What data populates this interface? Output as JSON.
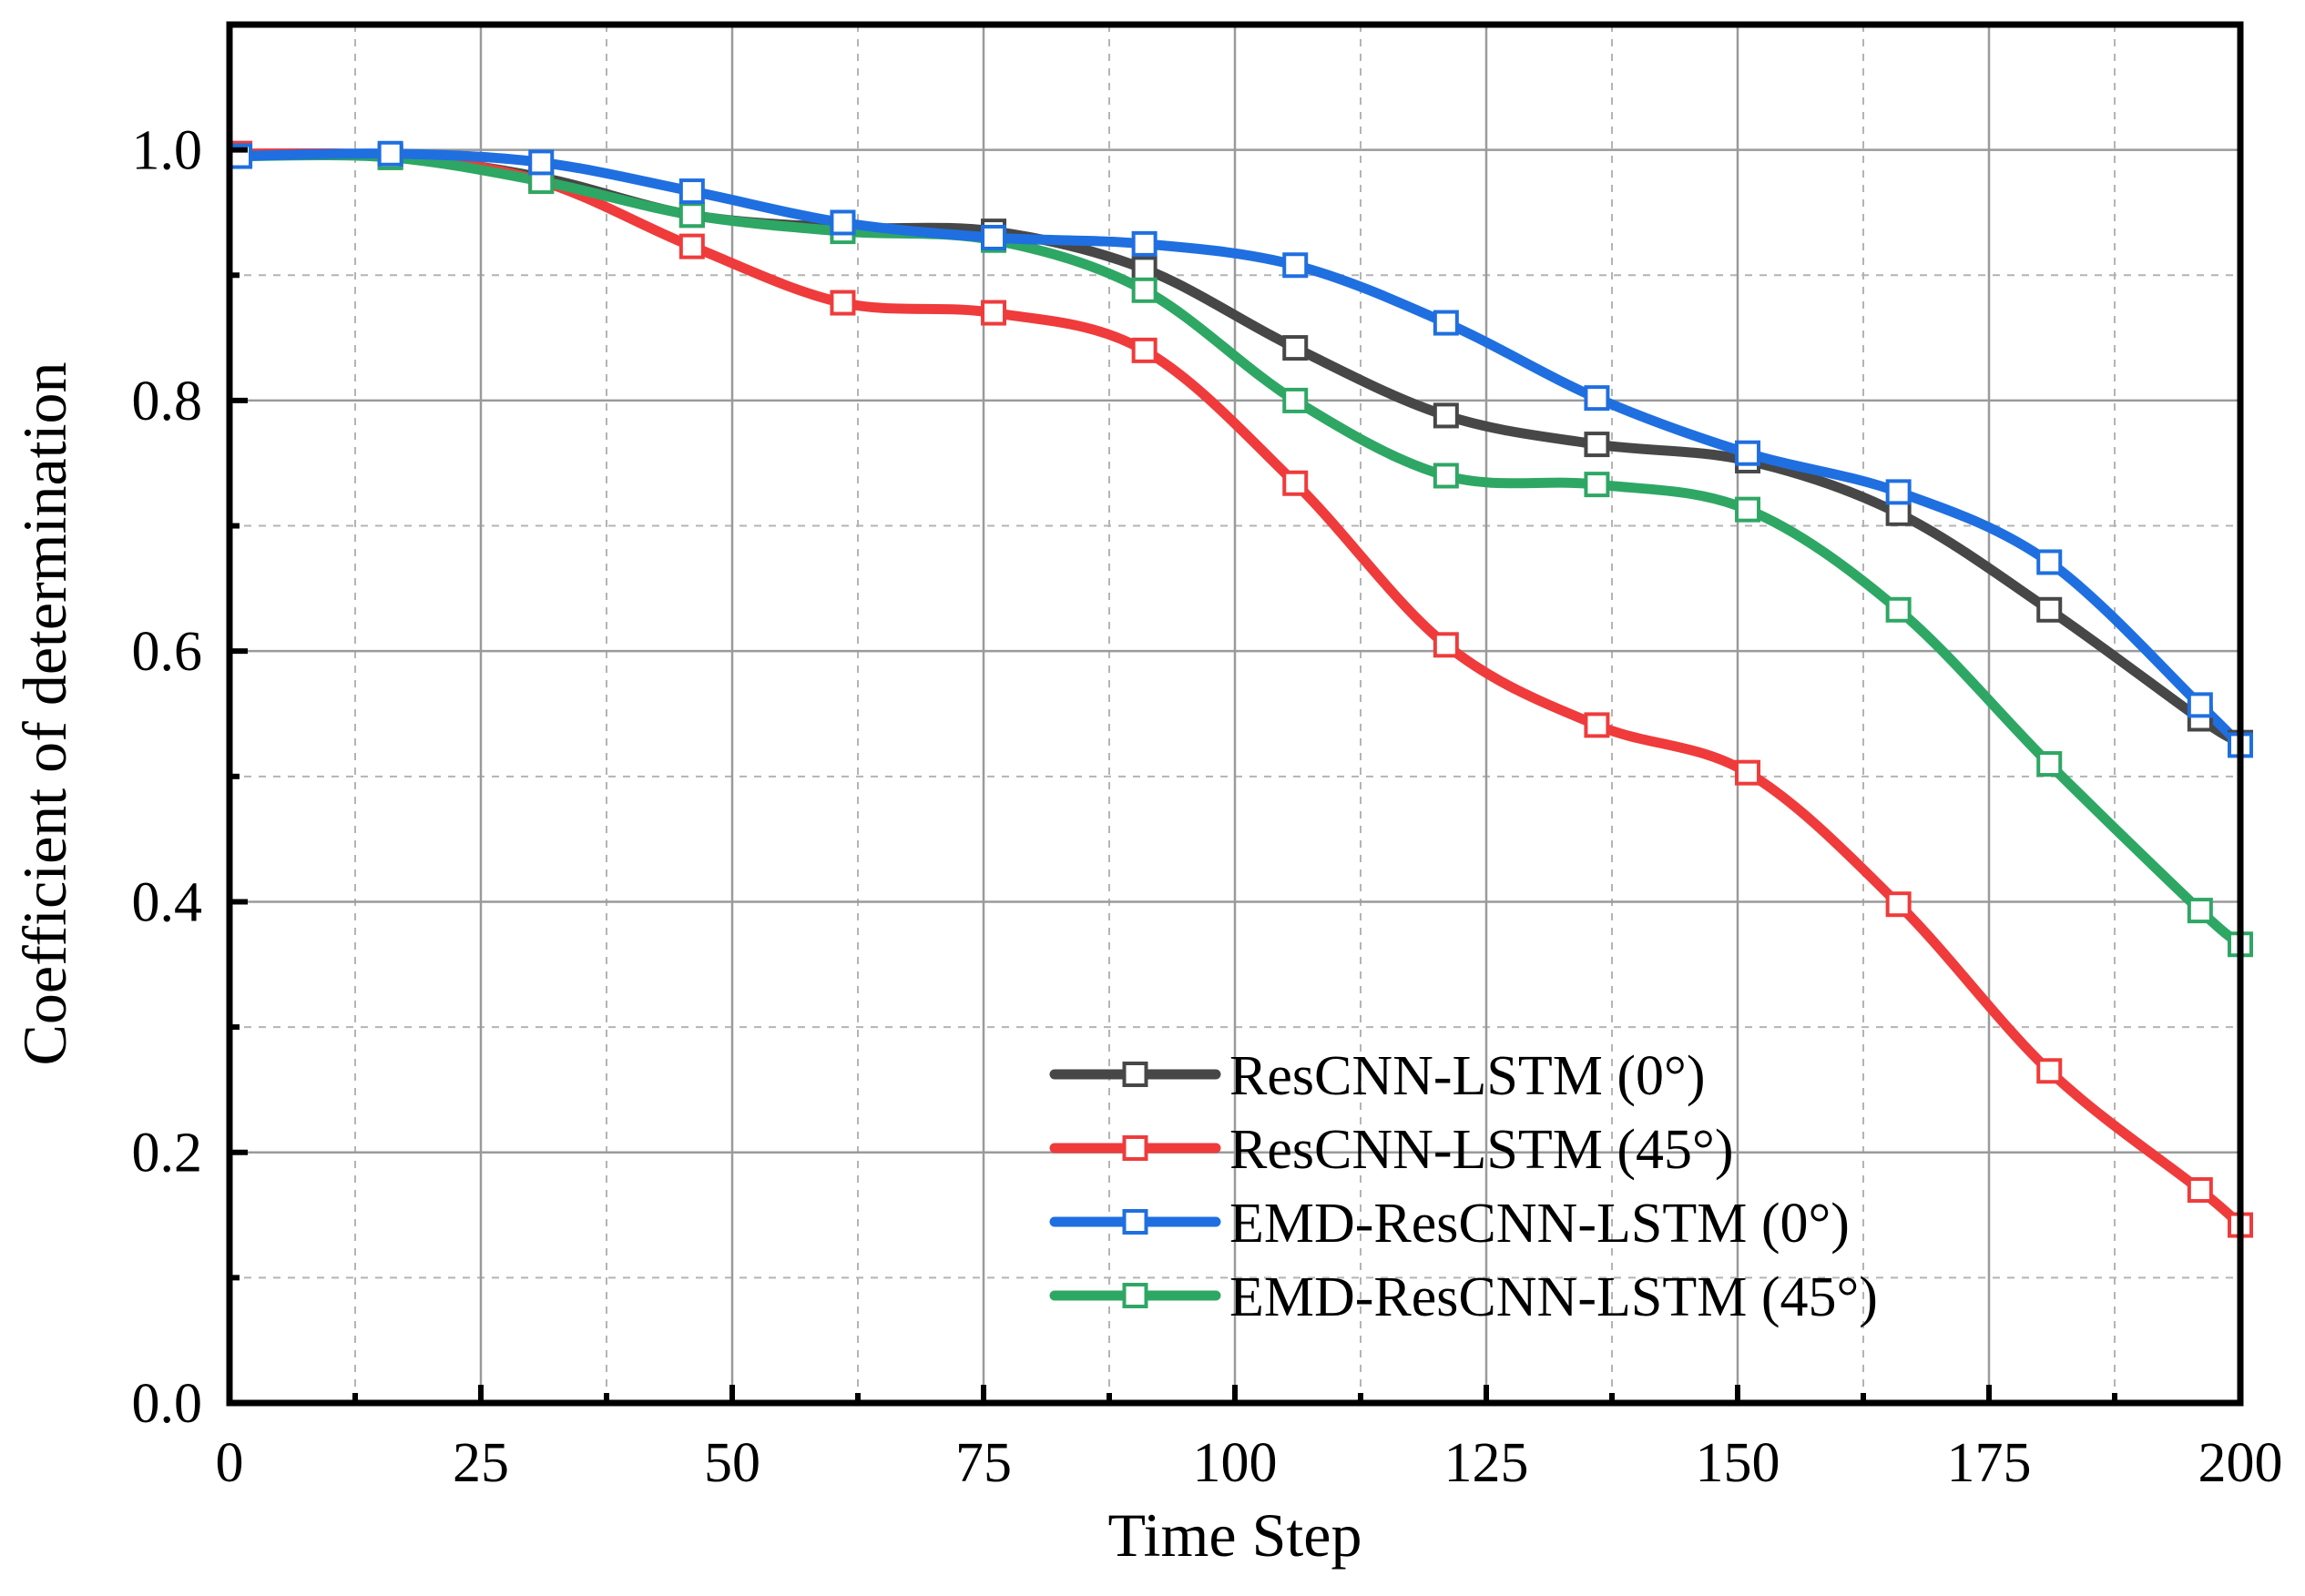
{
  "chart_data": {
    "type": "line",
    "title": "",
    "xlabel": "Time Step",
    "ylabel": "Coefficient of determination",
    "xlim": [
      0,
      200
    ],
    "ylim": [
      0,
      1.1
    ],
    "xticks": [
      0,
      25,
      50,
      75,
      100,
      125,
      150,
      175,
      200
    ],
    "xtick_labels": [
      "0",
      "25",
      "50",
      "75",
      "100",
      "125",
      "150",
      "175",
      "200"
    ],
    "yticks": [
      0.0,
      0.2,
      0.4,
      0.6,
      0.8,
      1.0
    ],
    "ytick_labels": [
      "0.0",
      "0.2",
      "0.4",
      "0.6",
      "0.8",
      "1.0"
    ],
    "grid": true,
    "legend_position": "bottom-center",
    "series": [
      {
        "name": "ResCNN-LSTM (0°)",
        "color": "#474747",
        "x": [
          1,
          16,
          31,
          46,
          61,
          76,
          91,
          106,
          121,
          136,
          151,
          166,
          181,
          196,
          200
        ],
        "y": [
          0.997,
          0.995,
          0.978,
          0.948,
          0.938,
          0.935,
          0.905,
          0.842,
          0.788,
          0.765,
          0.752,
          0.71,
          0.633,
          0.546,
          0.527
        ]
      },
      {
        "name": "ResCNN-LSTM (45°)",
        "color": "#ef3b3b",
        "x": [
          1,
          16,
          31,
          46,
          61,
          76,
          91,
          106,
          121,
          136,
          151,
          166,
          181,
          196,
          200
        ],
        "y": [
          0.997,
          0.995,
          0.975,
          0.923,
          0.878,
          0.87,
          0.84,
          0.734,
          0.605,
          0.541,
          0.503,
          0.398,
          0.265,
          0.17,
          0.142
        ]
      },
      {
        "name": "EMD-ResCNN-LSTM (0°)",
        "color": "#1f6fe0",
        "x": [
          1,
          16,
          31,
          46,
          61,
          76,
          91,
          106,
          121,
          136,
          151,
          166,
          181,
          196,
          200
        ],
        "y": [
          0.995,
          0.997,
          0.99,
          0.967,
          0.942,
          0.93,
          0.925,
          0.908,
          0.862,
          0.802,
          0.758,
          0.727,
          0.671,
          0.557,
          0.525
        ]
      },
      {
        "name": "EMD-ResCNN-LSTM (45°)",
        "color": "#2ea764",
        "x": [
          1,
          16,
          31,
          46,
          61,
          76,
          91,
          106,
          121,
          136,
          151,
          166,
          181,
          196,
          200
        ],
        "y": [
          0.995,
          0.994,
          0.975,
          0.948,
          0.935,
          0.928,
          0.888,
          0.8,
          0.74,
          0.733,
          0.713,
          0.633,
          0.51,
          0.393,
          0.366
        ]
      }
    ]
  }
}
